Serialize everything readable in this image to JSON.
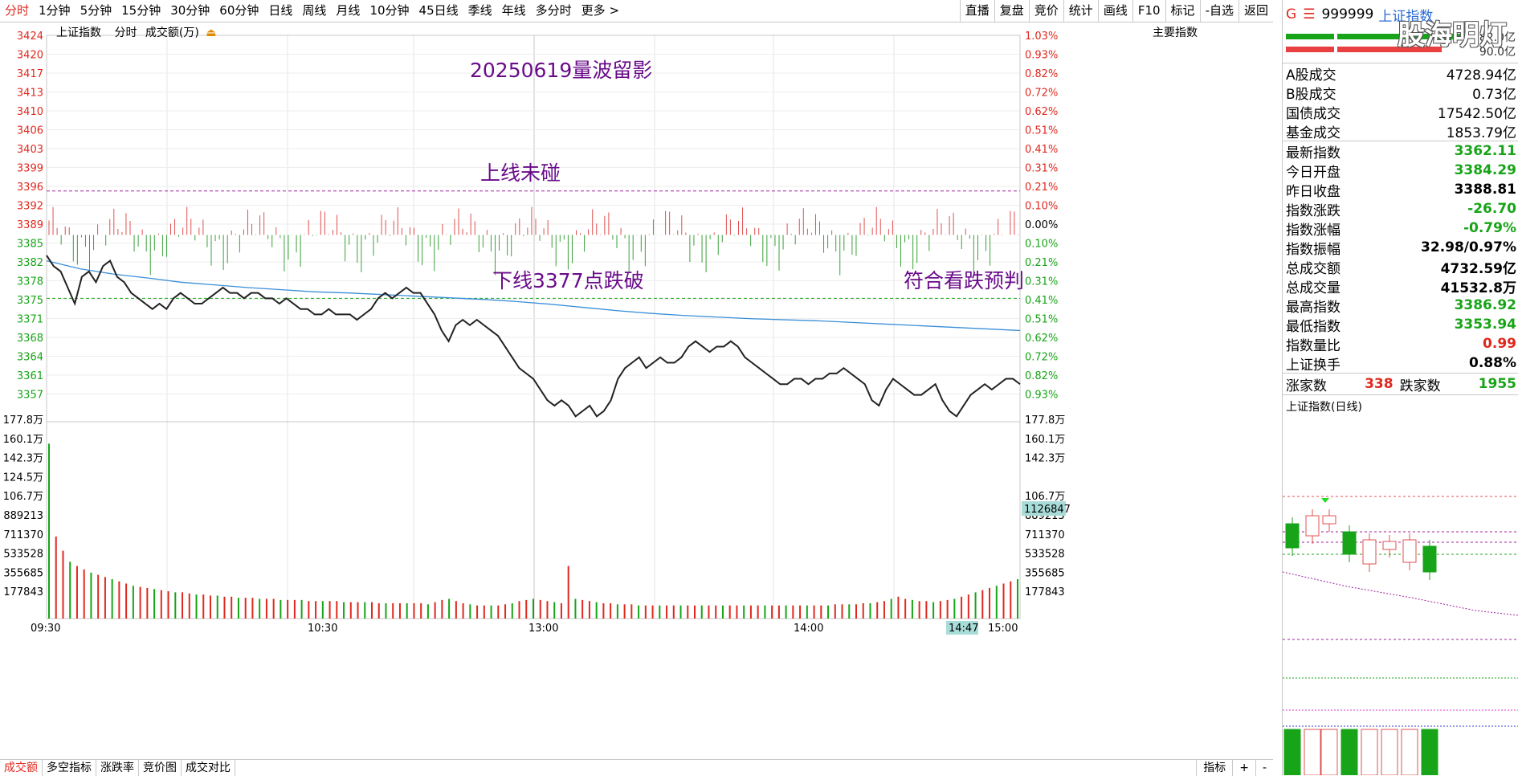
{
  "period_tabs": [
    "分时",
    "1分钟",
    "5分钟",
    "15分钟",
    "30分钟",
    "60分钟",
    "日线",
    "周线",
    "月线",
    "10分钟",
    "45日线",
    "季线",
    "年线",
    "多分时",
    "更多 >"
  ],
  "active_tab": "分时",
  "right_buttons": [
    "直播",
    "复盘",
    "竞价",
    "统计",
    "画线",
    "F10",
    "标记",
    "-自选",
    "返回"
  ],
  "chart_header": {
    "name": "上证指数",
    "mode": "分时",
    "metric": "成交额(万)",
    "indicator_label": "主要指数"
  },
  "annotations": {
    "title": "20250619量波留影",
    "upper": "上线未碰",
    "lower": "下线3377点跌破",
    "conclusion": "符合看跌预判"
  },
  "cursor_value": "1126847",
  "cursor_time": "14:47",
  "time_labels": [
    "09:30",
    "10:30",
    "13:00",
    "14:00",
    "15:00"
  ],
  "price_axis": [
    "3424",
    "3420",
    "3417",
    "3413",
    "3410",
    "3406",
    "3403",
    "3399",
    "3396",
    "3392",
    "3389",
    "3385",
    "3382",
    "3378",
    "3375",
    "3371",
    "3368",
    "3364",
    "3361",
    "3357"
  ],
  "pct_axis": [
    "1.03%",
    "0.93%",
    "0.82%",
    "0.72%",
    "0.62%",
    "0.51%",
    "0.41%",
    "0.31%",
    "0.21%",
    "0.10%",
    "0.00%",
    "0.10%",
    "0.21%",
    "0.31%",
    "0.41%",
    "0.51%",
    "0.62%",
    "0.72%",
    "0.82%",
    "0.93%"
  ],
  "volume_axis": [
    "177.8万",
    "160.1万",
    "142.3万",
    "124.5万",
    "106.7万",
    "889213",
    "711370",
    "533528",
    "355685",
    "177843"
  ],
  "volume_axis_right": [
    "177.8万",
    "160.1万",
    "142.3万",
    "124.5万",
    "106.7万",
    "889213",
    "711370",
    "533528",
    "355685",
    "177843"
  ],
  "chart_data": {
    "type": "line",
    "x_range": [
      "09:30",
      "15:00"
    ],
    "prev_close": 3388.81,
    "ylim": [
      3354,
      3426
    ],
    "reference_lines": {
      "upper": 3397,
      "lower": 3377
    },
    "price_series": [
      3385,
      3383,
      3382,
      3379,
      3376,
      3381,
      3382,
      3380,
      3383,
      3384,
      3381,
      3380,
      3378,
      3377,
      3376,
      3375,
      3376,
      3375,
      3377,
      3378,
      3377,
      3376,
      3376,
      3377,
      3378,
      3379,
      3378,
      3378,
      3377,
      3378,
      3378,
      3377,
      3377,
      3376,
      3377,
      3376,
      3375,
      3375,
      3374,
      3374,
      3375,
      3374,
      3374,
      3374,
      3373,
      3374,
      3375,
      3377,
      3378,
      3377,
      3378,
      3379,
      3378,
      3378,
      3376,
      3374,
      3371,
      3369,
      3372,
      3373,
      3372,
      3373,
      3372,
      3371,
      3370,
      3368,
      3366,
      3364,
      3363,
      3362,
      3360,
      3358,
      3357,
      3358,
      3357,
      3355,
      3356,
      3357,
      3355,
      3356,
      3358,
      3362,
      3364,
      3365,
      3366,
      3364,
      3365,
      3366,
      3365,
      3365,
      3366,
      3368,
      3369,
      3368,
      3367,
      3368,
      3368,
      3369,
      3368,
      3366,
      3365,
      3364,
      3363,
      3362,
      3361,
      3361,
      3362,
      3362,
      3361,
      3362,
      3362,
      3363,
      3363,
      3364,
      3363,
      3362,
      3361,
      3358,
      3357,
      3360,
      3362,
      3361,
      3360,
      3359,
      3359,
      3360,
      3361,
      3358,
      3356,
      3355,
      3357,
      3359,
      3360,
      3361,
      3360,
      3361,
      3362,
      3362,
      3361
    ],
    "avg_series": [
      3384,
      3382.5,
      3381.5,
      3380.8,
      3380,
      3379.5,
      3379,
      3378.6,
      3378.2,
      3378,
      3377.7,
      3377.4,
      3377.1,
      3376.8,
      3376.4,
      3375.9,
      3375.3,
      3374.7,
      3374.2,
      3373.8,
      3373.5,
      3373.2,
      3373,
      3372.8,
      3372.5,
      3372.2,
      3371.9,
      3371.6,
      3371.3,
      3371
    ],
    "vol_series": [
      160,
      75,
      62,
      52,
      48,
      45,
      42,
      40,
      38,
      36,
      34,
      32,
      30,
      29,
      28,
      27,
      26,
      25,
      24,
      24,
      23,
      22,
      22,
      21,
      21,
      20,
      20,
      19,
      19,
      19,
      18,
      18,
      18,
      17,
      17,
      17,
      17,
      16,
      16,
      16,
      16,
      16,
      15,
      15,
      15,
      15,
      15,
      14,
      14,
      14,
      14,
      14,
      14,
      14,
      13,
      15,
      17,
      18,
      16,
      14,
      13,
      12,
      12,
      12,
      12,
      13,
      14,
      16,
      17,
      18,
      17,
      16,
      15,
      14,
      48,
      18,
      17,
      16,
      15,
      14,
      14,
      13,
      13,
      13,
      12,
      12,
      12,
      12,
      12,
      12,
      12,
      12,
      12,
      12,
      12,
      12,
      12,
      12,
      12,
      12,
      12,
      12,
      12,
      12,
      12,
      12,
      12,
      12,
      12,
      12,
      12,
      12,
      13,
      13,
      13,
      13,
      14,
      14,
      15,
      16,
      18,
      20,
      18,
      17,
      16,
      16,
      15,
      16,
      17,
      18,
      20,
      22,
      24,
      26,
      28,
      30,
      32,
      34,
      36
    ]
  },
  "side": {
    "glyph_g": "G",
    "glyph_menu": "☰",
    "code": "999999",
    "name": "上证指数",
    "bar1": "82.0亿",
    "bar2": "90.0亿",
    "turnover": [
      {
        "label": "A股成交",
        "value": "4728.94亿"
      },
      {
        "label": "B股成交",
        "value": "0.73亿"
      },
      {
        "label": "国债成交",
        "value": "17542.50亿"
      },
      {
        "label": "基金成交",
        "value": "1853.79亿"
      }
    ],
    "stats": [
      {
        "label": "最新指数",
        "value": "3362.11",
        "color": "#18a418"
      },
      {
        "label": "今日开盘",
        "value": "3384.29",
        "color": "#18a418"
      },
      {
        "label": "昨日收盘",
        "value": "3388.81",
        "color": "#000000"
      },
      {
        "label": "指数涨跌",
        "value": "-26.70",
        "color": "#18a418"
      },
      {
        "label": "指数涨幅",
        "value": "-0.79%",
        "color": "#18a418"
      },
      {
        "label": "指数振幅",
        "value": "32.98/0.97%",
        "color": "#000000"
      },
      {
        "label": "总成交额",
        "value": "4732.59亿",
        "color": "#000000"
      },
      {
        "label": "总成交量",
        "value": "41532.8万",
        "color": "#000000"
      },
      {
        "label": "最高指数",
        "value": "3386.92",
        "color": "#18a418"
      },
      {
        "label": "最低指数",
        "value": "3353.94",
        "color": "#18a418"
      },
      {
        "label": "指数量比",
        "value": "0.99",
        "color": "#e0281e"
      },
      {
        "label": "上证换手",
        "value": "0.88%",
        "color": "#000000"
      }
    ],
    "breadth": {
      "up_label": "涨家数",
      "up": "338",
      "down_label": "跌家数",
      "down": "1955"
    },
    "mini_title": "上证指数(日线)",
    "watermark": "股海明灯"
  },
  "bottom_tabs": [
    "成交额",
    "多空指标",
    "涨跌率",
    "竞价图",
    "成交对比"
  ],
  "bottom_right": [
    "指标",
    "+",
    "-"
  ],
  "colors": {
    "up": "#e0281e",
    "down": "#18a418",
    "price": "#222222",
    "avg": "#3a8fd8",
    "ref": "#a020a0"
  }
}
